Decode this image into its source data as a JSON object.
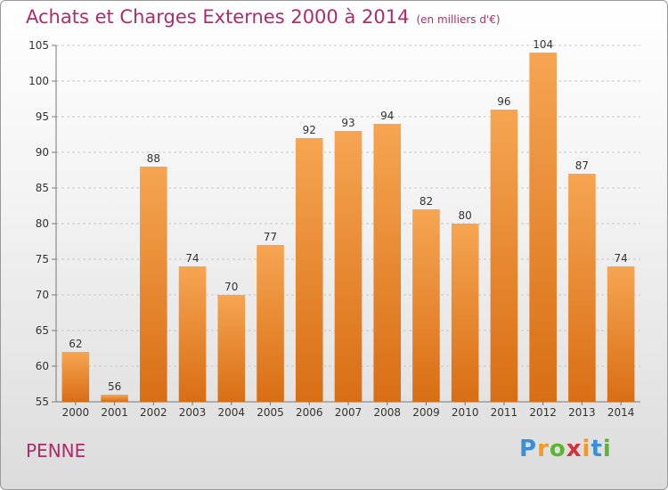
{
  "header": {
    "title": "Achats et Charges Externes 2000 à 2014",
    "subtitle": "(en milliers d'€)"
  },
  "footer": {
    "commune": "PENNE",
    "logo_letters": [
      "P",
      "r",
      "o",
      "x",
      "i",
      "t",
      "i"
    ],
    "logo_colors": [
      "#3a8fd6",
      "#f39a1e",
      "#5cb531",
      "#d6303c",
      "#f39a1e",
      "#3a8fd6",
      "#5cb531"
    ]
  },
  "colors": {
    "bar_top": "#f6a552",
    "bar_bottom": "#d86e14",
    "grid": "#c8c8c8",
    "title": "#b02a6c"
  },
  "chart_data": {
    "type": "bar",
    "title": "Achats et Charges Externes 2000 à 2014",
    "subtitle": "(en milliers d'€)",
    "categories": [
      "2000",
      "2001",
      "2002",
      "2003",
      "2004",
      "2005",
      "2006",
      "2007",
      "2008",
      "2009",
      "2010",
      "2011",
      "2012",
      "2013",
      "2014"
    ],
    "values": [
      62,
      56,
      88,
      74,
      70,
      77,
      92,
      93,
      94,
      82,
      80,
      96,
      104,
      87,
      74
    ],
    "ylim": [
      55,
      105
    ],
    "yticks": [
      55,
      60,
      65,
      70,
      75,
      80,
      85,
      90,
      95,
      100,
      105
    ],
    "grid": true,
    "xlabel": "",
    "ylabel": ""
  }
}
